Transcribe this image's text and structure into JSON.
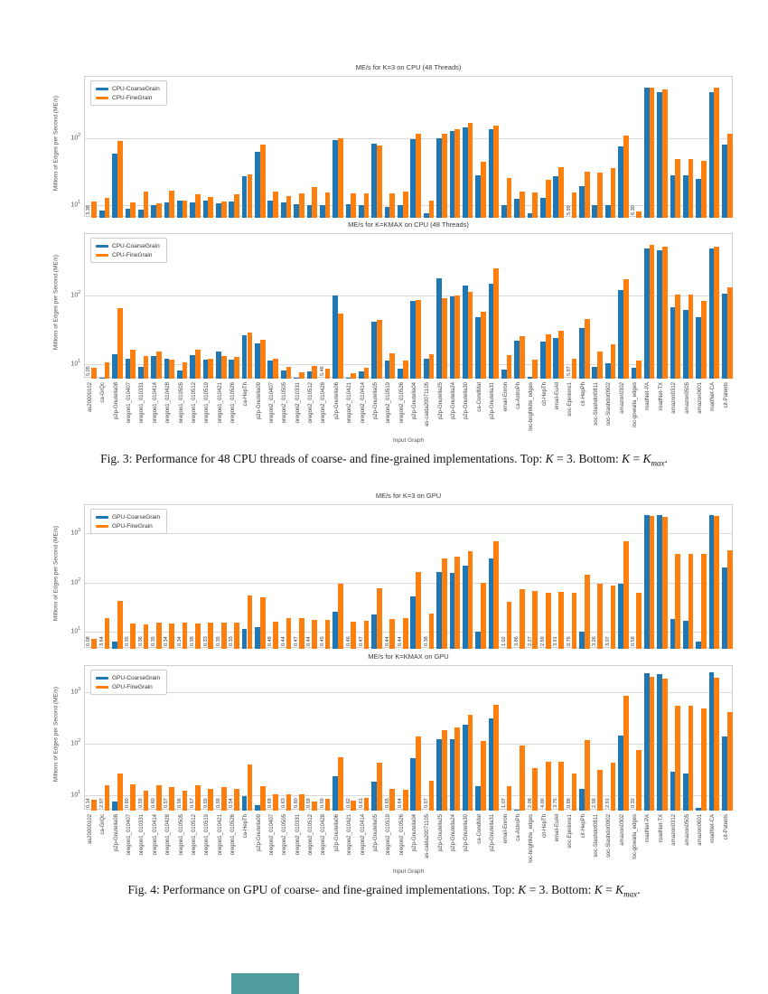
{
  "page": {
    "input_graph_label": "Input Graph",
    "ylabel": "Millions of Edges per Second (ME/s)",
    "artifact_color": "#4f9e9d",
    "fig3_caption": {
      "pre": "Fig. 3: Performance for 48 CPU threads of coarse- and fine-grained implementations. Top: ",
      "k1": "K",
      "mid1": " = 3. Bottom: ",
      "k2": "K",
      "mid2": " = ",
      "k3": "K",
      "sub": "max",
      "end": "."
    },
    "fig4_caption": {
      "pre": "Fig. 4: Performance on GPU of coarse- and fine-grained implementations. Top: ",
      "k1": "K",
      "mid1": " = 3. Bottom: ",
      "k2": "K",
      "mid2": " = ",
      "k3": "K",
      "sub": "max",
      "end": "."
    }
  },
  "chart_data": {
    "type": "bar",
    "log_scale": true,
    "grid": "horizontal",
    "legend_position": "upper-left",
    "shared_categories": [
      "as20000102",
      "ca-GrQc",
      "p2p-Gnutella08",
      "oregon1_010407",
      "oregon1_010331",
      "oregon1_010414",
      "oregon1_010428",
      "oregon1_010505",
      "oregon1_010512",
      "oregon1_010519",
      "oregon1_010421",
      "oregon1_010526",
      "ca-HepTh",
      "p2p-Gnutella09",
      "oregon2_010407",
      "oregon2_010505",
      "oregon2_010331",
      "oregon2_010512",
      "oregon2_010428",
      "p2p-Gnutella06",
      "oregon2_010421",
      "oregon2_010414",
      "p2p-Gnutella05",
      "oregon2_010519",
      "oregon2_010526",
      "p2p-Gnutella04",
      "as-caida20071105",
      "p2p-Gnutella25",
      "p2p-Gnutella24",
      "p2p-Gnutella30",
      "ca-CondMat",
      "p2p-Gnutella31",
      "email-Enron",
      "ca-AstroPh",
      "loc-brightkite_edges",
      "cit-HepTh",
      "email-EuAll",
      "soc-Epinions1",
      "cit-HepPh",
      "soc-Slashdot0811",
      "soc-Slashdot0902",
      "amazon0302",
      "loc-gowalla_edges",
      "roadNet-PA",
      "roadNet-TX",
      "amazon0312",
      "amazon0505",
      "amazon0601",
      "roadNet-CA",
      "cit-Patents"
    ],
    "colors": {
      "coarse": "#1f77b4",
      "fine": "#ff7f0e"
    },
    "charts": [
      {
        "title": "ME/s for K=3 on CPU (48 Threads)",
        "ylabel": "Millions of Edges per Second (ME/s)",
        "xlabel": "Input Graph",
        "ylim": [
          6.6,
          800
        ],
        "yticks": [
          10,
          100
        ],
        "show_xticklabels": false,
        "series": [
          {
            "name": "CPU-CoarseGrain",
            "color": "#1f77b4",
            "values": [
              3.38,
              8.5,
              58,
              9,
              8.7,
              10,
              11,
              12,
              11,
              11.7,
              10.7,
              11.5,
              27,
              62,
              12,
              11,
              10.4,
              10,
              10,
              92,
              10.5,
              10,
              82,
              9.5,
              10,
              95,
              7.8,
              100,
              125,
              142,
              28,
              134,
              10.1,
              12.6,
              7.7,
              13,
              27.4,
              5.99,
              19.4,
              10,
              10,
              76,
              6.3,
              547,
              480,
              28,
              28,
              24.6,
              480,
              80
            ]
          },
          {
            "name": "CPU-FineGrain",
            "color": "#ff7f0e",
            "values": [
              11.5,
              13,
              90,
              11,
              16,
              10.8,
              16.5,
              12,
              14.5,
              13.5,
              11.5,
              14.5,
              29,
              80,
              16,
              14,
              15,
              19,
              15.5,
              100,
              15,
              15,
              78,
              15,
              16,
              117,
              11.7,
              115,
              135,
              166,
              45,
              150,
              25.5,
              15.9,
              15.4,
              24,
              36.4,
              15.4,
              32,
              31,
              36,
              110,
              8.1,
              547,
              515,
              49,
              49,
              46,
              560,
              114
            ]
          }
        ],
        "annotations": {
          "0": "3.38",
          "37": "5.99",
          "42": "6.30"
        }
      },
      {
        "title": "ME/s for K=KMAX on CPU (48 Threads)",
        "ylabel": "Millions of Edges per Second (ME/s)",
        "xlabel": "Input Graph",
        "ylim": [
          6.1,
          800
        ],
        "yticks": [
          10,
          100
        ],
        "show_xticklabels": true,
        "series": [
          {
            "name": "CPU-CoarseGrain",
            "color": "#1f77b4",
            "values": [
              5.05,
              6.2,
              13.9,
              12.1,
              9.0,
              13.2,
              12.1,
              8.1,
              13.5,
              11.5,
              15,
              11.5,
              26,
              20,
              11.2,
              8.0,
              6.3,
              7.7,
              5.46,
              100,
              6.3,
              7.8,
              41.5,
              11.3,
              8.5,
              85,
              12,
              180,
              99,
              139,
              48,
              149,
              8.4,
              22,
              6.4,
              21,
              24,
              5.97,
              34,
              9,
              10.3,
              120,
              8.8,
              493,
              460,
              67,
              62,
              48,
              493,
              108
            ]
          },
          {
            "name": "CPU-FineGrain",
            "color": "#ff7f0e",
            "values": [
              8.8,
              10.4,
              65,
              16.1,
              13.2,
              15.1,
              11.5,
              10.4,
              16.1,
              11.9,
              13.2,
              12.8,
              29,
              22.3,
              12.1,
              9.0,
              7.5,
              9.4,
              8.5,
              55,
              7.4,
              8.8,
              44,
              14.3,
              11.2,
              87,
              13.8,
              92,
              100,
              114,
              59,
              248,
              13.6,
              25.4,
              11.4,
              27.5,
              31,
              11.8,
              46,
              15.2,
              19.2,
              174,
              11.2,
              560,
              517,
              103,
              103,
              83,
              517,
              132
            ]
          }
        ],
        "annotations": {
          "0": "5.05",
          "18": "5.46",
          "37": "5.97"
        }
      },
      {
        "title": "ME/s for K=3 on GPU",
        "ylabel": "Millions of Edges per Second (ME/s)",
        "xlabel": "Input Graph",
        "ylim": [
          4.6,
          3600
        ],
        "yticks": [
          10,
          100,
          1000
        ],
        "show_xticklabels": false,
        "series": [
          {
            "name": "GPU-CoarseGrain",
            "color": "#1f77b4",
            "values": [
              0.08,
              3.64,
              6.4,
              0.35,
              0.36,
              0.35,
              0.34,
              0.34,
              0.38,
              0.33,
              0.35,
              0.33,
              11.5,
              12.5,
              0.48,
              0.44,
              0.47,
              0.44,
              0.45,
              26,
              0.46,
              0.47,
              23,
              0.44,
              0.44,
              52,
              0.38,
              160,
              155,
              215,
              10,
              310,
              1.02,
              3.86,
              2.27,
              2.69,
              3.91,
              0.76,
              10,
              3.26,
              3.07,
              95,
              0.58,
              2240,
              2230,
              18,
              17,
              6.4,
              2280,
              200
            ]
          },
          {
            "name": "GPU-FineGrain",
            "color": "#ff7f0e",
            "values": [
              7.4,
              19.4,
              43,
              15,
              14.5,
              15.5,
              15,
              15.8,
              15,
              15.5,
              15.5,
              15.8,
              55,
              50,
              16,
              19.5,
              19.5,
              17.5,
              17.5,
              95,
              16,
              17,
              75,
              18.5,
              19.5,
              160,
              23.5,
              300,
              330,
              430,
              97,
              680,
              40,
              72,
              68,
              62,
              65,
              62,
              140,
              95,
              85,
              680,
              63,
              2200,
              2100,
              370,
              370,
              370,
              2150,
              440
            ]
          }
        ],
        "annotations": {
          "0": "0.08",
          "1": "3.64",
          "3": "0.35",
          "4": "0.36",
          "5": "0.35",
          "6": "0.34",
          "7": "0.34",
          "8": "0.38",
          "9": "0.33",
          "10": "0.35",
          "11": "0.33",
          "14": "0.48",
          "15": "0.44",
          "16": "0.47",
          "17": "0.44",
          "18": "0.45",
          "20": "0.46",
          "21": "0.47",
          "23": "0.44",
          "24": "0.44",
          "26": "0.38",
          "32": "1.02",
          "33": "3.86",
          "34": "2.27",
          "35": "2.69",
          "36": "3.91",
          "37": "0.76",
          "39": "3.26",
          "40": "3.07",
          "42": "0.58"
        }
      },
      {
        "title": "ME/s for K=KMAX on GPU",
        "ylabel": "Millions of Edges per Second (ME/s)",
        "xlabel": "Input Graph",
        "ylim": [
          5.0,
          3250
        ],
        "yticks": [
          10,
          100,
          1000
        ],
        "show_xticklabels": true,
        "series": [
          {
            "name": "GPU-CoarseGrain",
            "color": "#1f77b4",
            "values": [
              0.14,
              2.97,
              7.5,
              0.6,
              0.59,
              0.6,
              0.57,
              0.56,
              0.57,
              0.55,
              0.59,
              0.54,
              9.5,
              6.5,
              0.69,
              0.63,
              0.6,
              0.59,
              0.59,
              23,
              0.62,
              0.61,
              18,
              0.65,
              0.64,
              52,
              0.57,
              120,
              120,
              235,
              15,
              310,
              1.07,
              5.3,
              2.08,
              4.0,
              3.75,
              0.88,
              13,
              2.56,
              2.91,
              145,
              0.32,
              2360,
              2300,
              28,
              26,
              5.6,
              2400,
              140
            ]
          },
          {
            "name": "GPU-FineGrain",
            "color": "#ff7f0e",
            "values": [
              8,
              15.5,
              26,
              16,
              12,
              15.5,
              14.5,
              12,
              15.5,
              13,
              14.5,
              13,
              40,
              15,
              10.5,
              10.5,
              10.5,
              7.5,
              8.5,
              55,
              7.8,
              8.7,
              43,
              13,
              12.5,
              140,
              19,
              180,
              210,
              370,
              115,
              575,
              15,
              92,
              34,
              45,
              45,
              26,
              118,
              31,
              43,
              850,
              76,
              2000,
              1850,
              540,
              540,
              490,
              1950,
              420
            ]
          }
        ],
        "annotations": {
          "0": "0.14",
          "1": "2.97",
          "3": "0.60",
          "4": "0.59",
          "5": "0.60",
          "6": "0.57",
          "7": "0.56",
          "8": "0.57",
          "9": "0.55",
          "10": "0.59",
          "11": "0.54",
          "14": "0.69",
          "15": "0.63",
          "16": "0.60",
          "17": "0.59",
          "18": "0.59",
          "20": "0.62",
          "21": "0.61",
          "23": "0.65",
          "24": "0.64",
          "26": "0.57",
          "32": "1.07",
          "34": "2.08",
          "35": "4.00",
          "36": "3.75",
          "37": "0.88",
          "39": "2.56",
          "40": "2.91",
          "42": "0.32"
        }
      }
    ]
  }
}
